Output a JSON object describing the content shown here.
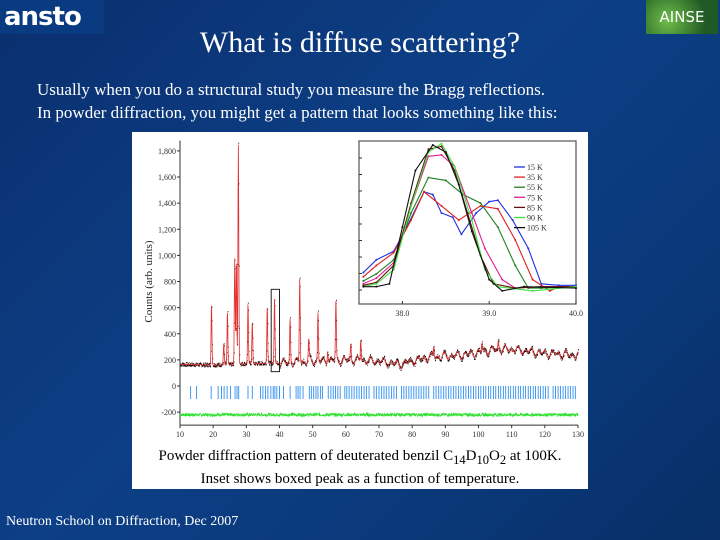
{
  "logos": {
    "left": "ansto",
    "right": "AINSE"
  },
  "title": "What is diffuse scattering?",
  "intro": [
    "Usually when you do a structural study you measure the Bragg reflections.",
    "In powder diffraction, you might get a pattern that looks something like this:"
  ],
  "caption": {
    "line1_prefix": "Powder diffraction pattern of deuterated benzil C",
    "sub1": "14",
    "d": "D",
    "sub2": "10",
    "o": "O",
    "sub3": "2",
    "line1_suffix": " at 100K.",
    "line2": "Inset shows boxed peak as a function of temperature."
  },
  "footer": "Neutron School on Diffraction, Dec 2007",
  "chart_data": [
    {
      "type": "line",
      "ylabel": "Counts (arb. units)",
      "xlim": [
        10,
        130
      ],
      "ylim": [
        -300,
        1880
      ],
      "xticks": [
        10,
        20,
        30,
        40,
        50,
        60,
        70,
        80,
        90,
        100,
        110,
        120,
        130
      ],
      "yticks": [
        -200,
        0,
        200,
        400,
        600,
        800,
        "1,000",
        "1,200",
        "1,400",
        "1,600",
        "1,800"
      ],
      "ytick_values": [
        -200,
        0,
        200,
        400,
        600,
        800,
        1000,
        1200,
        1400,
        1600,
        1800
      ],
      "background": [
        [
          10,
          165
        ],
        [
          20,
          160
        ],
        [
          30,
          170
        ],
        [
          40,
          175
        ],
        [
          50,
          190
        ],
        [
          60,
          200
        ],
        [
          70,
          190
        ],
        [
          76,
          165
        ],
        [
          85,
          220
        ],
        [
          95,
          235
        ],
        [
          105,
          280
        ],
        [
          110,
          280
        ],
        [
          120,
          250
        ],
        [
          130,
          235
        ]
      ],
      "peaks": [
        [
          19.5,
          460
        ],
        [
          23.2,
          160
        ],
        [
          24.3,
          400
        ],
        [
          26.5,
          820
        ],
        [
          27.0,
          790
        ],
        [
          27.6,
          1680
        ],
        [
          30.5,
          460
        ],
        [
          31.8,
          320
        ],
        [
          36.3,
          430
        ],
        [
          38.5,
          500
        ],
        [
          43.2,
          330
        ],
        [
          46.1,
          660
        ],
        [
          48.8,
          150
        ],
        [
          51.6,
          370
        ],
        [
          54.5,
          90
        ],
        [
          57.0,
          450
        ],
        [
          61.5,
          120
        ],
        [
          64.5,
          170
        ],
        [
          86.5,
          90
        ],
        [
          101,
          70
        ],
        [
          106,
          60
        ]
      ],
      "boxed_peak_range": [
        37.5,
        40.0
      ],
      "difference_offset": -220,
      "reflection_positions": [
        13.2,
        15.0,
        19.4,
        21.5,
        22.5,
        23.3,
        24.2,
        25.2,
        26.6,
        27.2,
        27.7,
        30.5,
        31.8,
        34.3,
        35.0,
        35.8,
        36.5,
        37.4,
        38.1,
        38.6,
        39.2,
        40.0,
        41.2,
        43.2,
        45.0,
        45.6,
        46.2,
        47.1,
        49.0,
        49.6,
        50.3,
        51.0,
        51.6,
        52.4,
        53.0,
        54.7,
        55.5,
        56.2,
        56.9,
        57.6,
        58.3,
        59.7,
        60.3,
        61.0,
        61.8,
        62.5,
        63.3,
        64.0,
        64.7,
        65.5,
        66.2,
        67.0,
        68.5,
        69.2,
        70.0,
        70.8,
        71.5,
        72.2,
        73.0,
        73.8,
        74.5,
        75.3,
        76.8,
        77.5,
        78.2,
        79.0,
        79.7,
        80.5,
        81.2,
        82.0,
        82.7,
        83.5,
        84.2,
        85.0,
        86.5,
        87.2,
        88.0,
        88.7,
        89.5,
        90.2,
        91.0,
        91.7,
        92.5,
        93.2,
        94.0,
        94.7,
        95.5,
        96.2,
        97.0,
        97.7,
        98.5,
        99.2,
        100.0,
        100.7,
        101.5,
        102.2,
        103.0,
        103.7,
        104.5,
        105.2,
        106.0,
        106.7,
        107.5,
        108.2,
        109.0,
        109.7,
        110.5,
        111.2,
        112.0,
        112.7,
        113.5,
        114.2,
        115.0,
        115.7,
        116.5,
        117.2,
        118.0,
        118.7,
        119.5,
        120.2,
        121.0,
        122.5,
        123.2,
        124.0,
        124.7,
        125.5,
        126.2,
        127.0,
        127.7,
        128.5,
        129.2
      ],
      "colors": {
        "calculated": "#e03030",
        "observed": "#200000",
        "reflections": "#2f8ff0",
        "difference": "#30e030"
      }
    },
    {
      "type": "line",
      "title": "inset",
      "xlim": [
        37.5,
        40.0
      ],
      "xticks": [
        "38.0",
        "39.0",
        "40.0"
      ],
      "xtick_values": [
        38.0,
        39.0,
        40.0
      ],
      "ylim": [
        -0.05,
        1.03
      ],
      "legend": "top-right",
      "series": [
        {
          "name": "15 K",
          "color": "#2030e0",
          "points": [
            [
              37.55,
              0.13
            ],
            [
              37.7,
              0.22
            ],
            [
              37.9,
              0.28
            ],
            [
              38.05,
              0.45
            ],
            [
              38.25,
              0.7
            ],
            [
              38.35,
              0.68
            ],
            [
              38.45,
              0.55
            ],
            [
              38.58,
              0.52
            ],
            [
              38.68,
              0.4
            ],
            [
              38.85,
              0.55
            ],
            [
              39.0,
              0.63
            ],
            [
              39.1,
              0.64
            ],
            [
              39.27,
              0.5
            ],
            [
              39.45,
              0.3
            ],
            [
              39.6,
              0.05
            ],
            [
              39.8,
              0.04
            ],
            [
              40.0,
              0.04
            ]
          ]
        },
        {
          "name": "35 K",
          "color": "#e02020",
          "points": [
            [
              37.55,
              0.1
            ],
            [
              37.7,
              0.18
            ],
            [
              37.9,
              0.27
            ],
            [
              38.1,
              0.5
            ],
            [
              38.25,
              0.7
            ],
            [
              38.45,
              0.6
            ],
            [
              38.65,
              0.5
            ],
            [
              38.9,
              0.6
            ],
            [
              39.1,
              0.58
            ],
            [
              39.3,
              0.36
            ],
            [
              39.5,
              0.08
            ],
            [
              39.7,
              0.0
            ],
            [
              39.8,
              0.03
            ],
            [
              40.0,
              0.03
            ]
          ]
        },
        {
          "name": "55 K",
          "color": "#208020",
          "points": [
            [
              37.55,
              0.07
            ],
            [
              37.7,
              0.12
            ],
            [
              37.9,
              0.22
            ],
            [
              38.1,
              0.55
            ],
            [
              38.3,
              0.8
            ],
            [
              38.5,
              0.78
            ],
            [
              38.7,
              0.68
            ],
            [
              38.9,
              0.62
            ],
            [
              39.1,
              0.45
            ],
            [
              39.3,
              0.18
            ],
            [
              39.45,
              0.02
            ],
            [
              39.6,
              0.02
            ],
            [
              40.0,
              0.03
            ]
          ]
        },
        {
          "name": "75 K",
          "color": "#e02090",
          "points": [
            [
              37.55,
              0.05
            ],
            [
              37.7,
              0.09
            ],
            [
              37.9,
              0.2
            ],
            [
              38.1,
              0.6
            ],
            [
              38.3,
              0.95
            ],
            [
              38.45,
              0.96
            ],
            [
              38.6,
              0.88
            ],
            [
              38.8,
              0.55
            ],
            [
              38.95,
              0.3
            ],
            [
              39.15,
              0.08
            ],
            [
              39.3,
              0.02
            ],
            [
              39.6,
              0.03
            ],
            [
              40.0,
              0.03
            ]
          ]
        },
        {
          "name": "85 K",
          "color": "#601010",
          "points": [
            [
              37.55,
              0.04
            ],
            [
              37.7,
              0.06
            ],
            [
              37.9,
              0.18
            ],
            [
              38.1,
              0.62
            ],
            [
              38.3,
              1.0
            ],
            [
              38.45,
              1.02
            ],
            [
              38.6,
              0.85
            ],
            [
              38.75,
              0.55
            ],
            [
              38.9,
              0.25
            ],
            [
              39.05,
              0.05
            ],
            [
              39.3,
              0.02
            ],
            [
              39.6,
              0.03
            ],
            [
              40.0,
              0.03
            ]
          ]
        },
        {
          "name": "90 K",
          "color": "#40e040",
          "points": [
            [
              37.55,
              0.03
            ],
            [
              37.7,
              0.05
            ],
            [
              37.9,
              0.15
            ],
            [
              38.1,
              0.6
            ],
            [
              38.3,
              0.98
            ],
            [
              38.45,
              1.04
            ],
            [
              38.6,
              0.88
            ],
            [
              38.8,
              0.5
            ],
            [
              38.95,
              0.15
            ],
            [
              39.1,
              0.03
            ],
            [
              39.5,
              0.0
            ],
            [
              40.0,
              0.03
            ]
          ]
        },
        {
          "name": "105 K",
          "color": "#101010",
          "points": [
            [
              37.55,
              0.03
            ],
            [
              37.7,
              0.03
            ],
            [
              37.85,
              0.05
            ],
            [
              38.0,
              0.45
            ],
            [
              38.15,
              0.85
            ],
            [
              38.35,
              1.03
            ],
            [
              38.5,
              0.98
            ],
            [
              38.65,
              0.75
            ],
            [
              38.8,
              0.42
            ],
            [
              39.0,
              0.08
            ],
            [
              39.15,
              0.0
            ],
            [
              39.4,
              0.03
            ],
            [
              40.0,
              0.02
            ]
          ]
        }
      ]
    }
  ]
}
